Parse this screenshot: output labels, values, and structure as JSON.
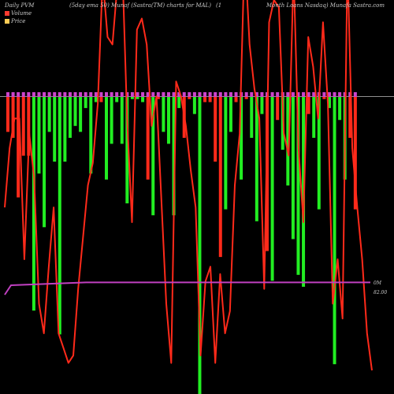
{
  "header": {
    "left": "Daily PVM",
    "center": "(5day ema 50) Munaf (Sastra(TM) charts for MAL)",
    "mid": "(1",
    "right": "Month Loans Nasdaq) Munafa Sastra.com"
  },
  "legend": {
    "volume_label": "Volume",
    "price_label": "Price",
    "volume_color": "#ff3b30",
    "price_color": "#ffcc55"
  },
  "axis_right": {
    "zero_label": "0M",
    "price_label": "82.00"
  },
  "chart_data": {
    "type": "bar",
    "series": [
      {
        "role": "volume",
        "bar_colors": {
          "up": "#22ee22",
          "down": "#ff2a1a",
          "cap": "#cc44cc"
        },
        "bars": [
          {
            "d": "down",
            "v": 0.12
          },
          {
            "d": "down",
            "v": 0.14
          },
          {
            "d": "down",
            "v": 0.34
          },
          {
            "d": "down",
            "v": 0.2
          },
          {
            "d": "down",
            "v": 0.2
          },
          {
            "d": "up",
            "v": 0.72
          },
          {
            "d": "up",
            "v": 0.26
          },
          {
            "d": "up",
            "v": 0.44
          },
          {
            "d": "up",
            "v": 0.12
          },
          {
            "d": "up",
            "v": 0.22
          },
          {
            "d": "up",
            "v": 0.8
          },
          {
            "d": "up",
            "v": 0.22
          },
          {
            "d": "up",
            "v": 0.14
          },
          {
            "d": "up",
            "v": 0.1
          },
          {
            "d": "up",
            "v": 0.12
          },
          {
            "d": "up",
            "v": 0.04
          },
          {
            "d": "up",
            "v": 0.26
          },
          {
            "d": "up",
            "v": 0.02
          },
          {
            "d": "down",
            "v": 0.02
          },
          {
            "d": "up",
            "v": 0.28
          },
          {
            "d": "up",
            "v": 0.16
          },
          {
            "d": "up",
            "v": 0.02
          },
          {
            "d": "up",
            "v": 0.16
          },
          {
            "d": "up",
            "v": 0.36
          },
          {
            "d": "up",
            "v": 0.01
          },
          {
            "d": "up",
            "v": 0.01
          },
          {
            "d": "up",
            "v": 0.02
          },
          {
            "d": "down",
            "v": 0.28
          },
          {
            "d": "up",
            "v": 0.4
          },
          {
            "d": "down",
            "v": 0.01
          },
          {
            "d": "up",
            "v": 0.12
          },
          {
            "d": "up",
            "v": 0.16
          },
          {
            "d": "up",
            "v": 0.4
          },
          {
            "d": "up",
            "v": 0.04
          },
          {
            "d": "down",
            "v": 0.14
          },
          {
            "d": "down",
            "v": 0.01
          },
          {
            "d": "up",
            "v": 0.06
          },
          {
            "d": "up",
            "v": 1.0
          },
          {
            "d": "down",
            "v": 0.02
          },
          {
            "d": "down",
            "v": 0.02
          },
          {
            "d": "down",
            "v": 0.22
          },
          {
            "d": "down",
            "v": 0.54
          },
          {
            "d": "up",
            "v": 0.38
          },
          {
            "d": "up",
            "v": 0.12
          },
          {
            "d": "down",
            "v": 0.02
          },
          {
            "d": "up",
            "v": 0.28
          },
          {
            "d": "down",
            "v": 0.01
          },
          {
            "d": "up",
            "v": 0.14
          },
          {
            "d": "up",
            "v": 0.42
          },
          {
            "d": "up",
            "v": 0.06
          },
          {
            "d": "down",
            "v": 0.52
          },
          {
            "d": "up",
            "v": 0.62
          },
          {
            "d": "down",
            "v": 0.08
          },
          {
            "d": "up",
            "v": 0.18
          },
          {
            "d": "up",
            "v": 0.3
          },
          {
            "d": "up",
            "v": 0.48
          },
          {
            "d": "up",
            "v": 0.6
          },
          {
            "d": "up",
            "v": 0.64
          },
          {
            "d": "down",
            "v": 0.06
          },
          {
            "d": "up",
            "v": 0.14
          },
          {
            "d": "up",
            "v": 0.38
          },
          {
            "d": "down",
            "v": 0.01
          },
          {
            "d": "up",
            "v": 0.04
          },
          {
            "d": "up",
            "v": 0.9
          },
          {
            "d": "up",
            "v": 0.08
          },
          {
            "d": "up",
            "v": 0.28
          },
          {
            "d": "down",
            "v": 0.14
          },
          {
            "d": "down",
            "v": 0.38
          }
        ]
      },
      {
        "role": "price",
        "color": "#ff2a1a",
        "values": [
          0.44,
          0.6,
          0.68,
          0.68,
          0.3,
          0.64,
          0.52,
          0.18,
          0.1,
          0.28,
          0.44,
          0.1,
          0.06,
          0.02,
          0.04,
          0.22,
          0.36,
          0.5,
          0.56,
          0.72,
          1.06,
          0.9,
          0.88,
          1.04,
          1.1,
          0.68,
          0.4,
          0.92,
          0.95,
          0.88,
          0.66,
          0.74,
          0.46,
          0.18,
          0.02,
          0.78,
          0.74,
          0.66,
          0.54,
          0.44,
          0.04,
          0.24,
          0.28,
          0.02,
          0.26,
          0.1,
          0.16,
          0.5,
          0.64,
          1.14,
          0.88,
          0.76,
          0.68,
          0.22,
          0.94,
          1.0,
          0.98,
          0.64,
          0.58,
          1.08,
          0.6,
          0.4,
          0.9,
          0.82,
          0.68,
          0.94,
          0.72,
          0.18,
          0.3,
          0.14,
          1.1,
          0.6,
          0.44,
          0.3,
          0.1,
          0.0
        ]
      },
      {
        "role": "ema",
        "color": "#c040c0",
        "values": [
          0.86,
          0.88,
          0.88,
          0.88,
          0.88,
          0.88,
          0.88,
          0.88,
          0.88,
          0.88
        ]
      }
    ]
  }
}
